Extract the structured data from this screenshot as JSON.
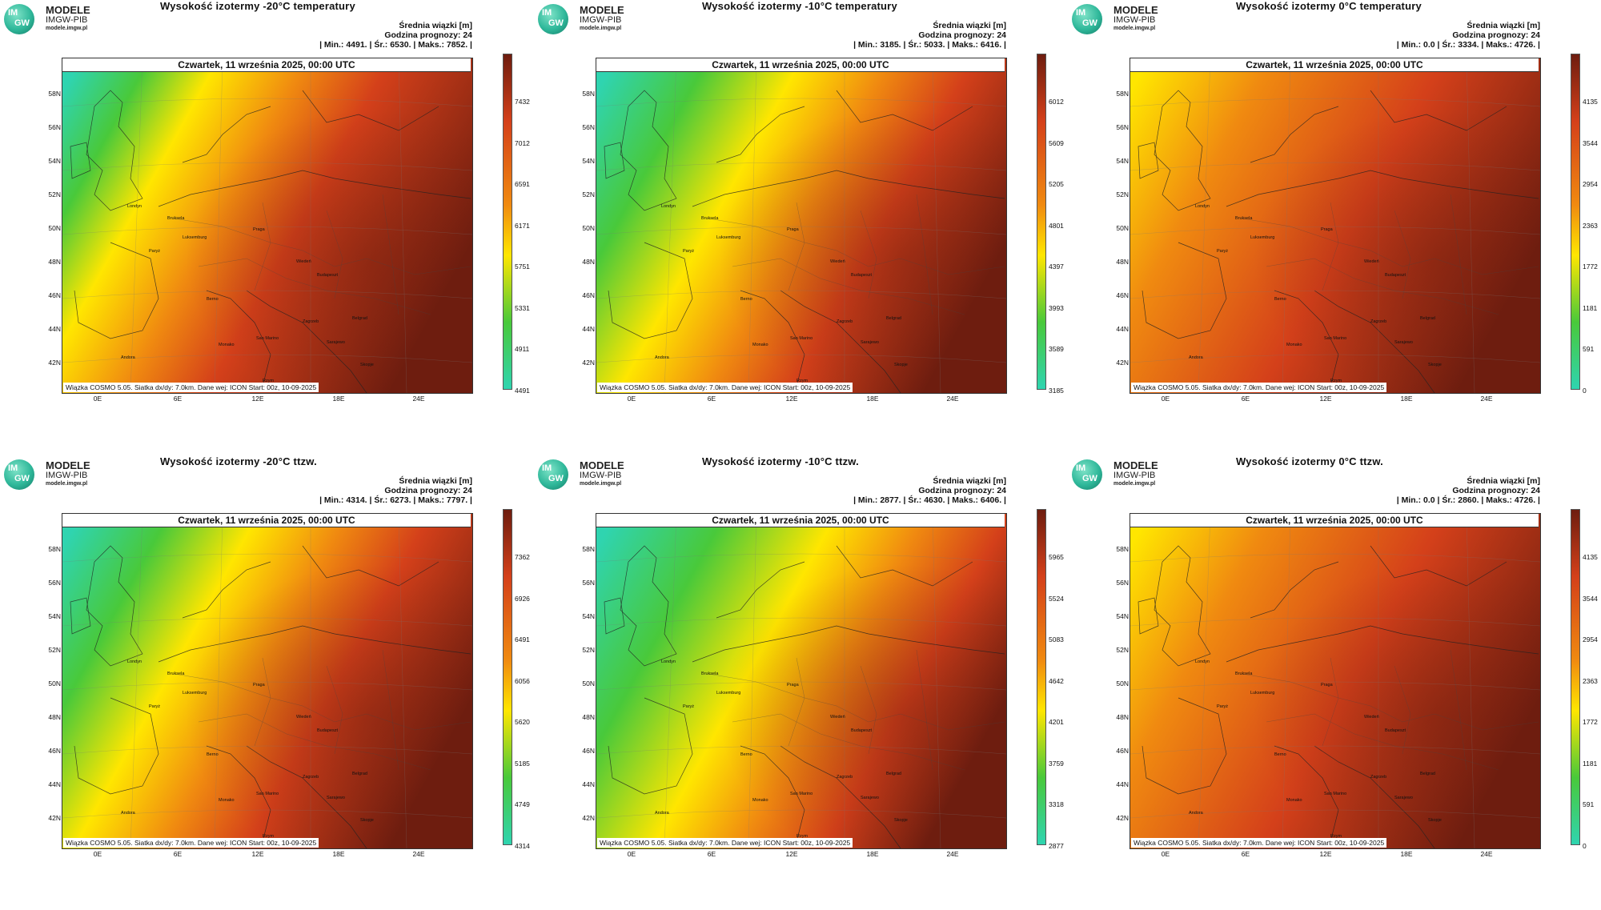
{
  "logo": {
    "mark_top": "IM",
    "mark_bottom": "GW",
    "line1": "MODELE",
    "line2": "IMGW-PIB",
    "line3": "modele.imgw.pl"
  },
  "stats_header": "Średnia wiązki [m]",
  "forecast_hour": "Godzina prognozy: 24",
  "date": "Czwartek, 11 września 2025, 00:00 UTC",
  "footer": "Wiązka COSMO 5.05. Siatka dx/dy: 7.0km. Dane wej: ICON Start: 00z, 10-09-2025",
  "lat_labels": [
    "58N",
    "56N",
    "54N",
    "52N",
    "50N",
    "48N",
    "46N",
    "44N",
    "42N"
  ],
  "lon_labels": [
    "0E",
    "6E",
    "12E",
    "18E",
    "24E"
  ],
  "cities": [
    "Londyn",
    "Bruksela",
    "Paryż",
    "Luksemburg",
    "Praga",
    "Wiedeń",
    "Budapeszt",
    "Berno",
    "Zagrzeb",
    "San Marino",
    "Monako",
    "Sarajewo",
    "Belgrad",
    "Andora",
    "Rzym",
    "Skopje"
  ],
  "panels": [
    {
      "title": "Wysokość izotermy -20°C temperatury",
      "stats": "| Min.:   4491. | Śr.:   6530. | Maks.:   7852. |",
      "colorbar_ticks": [
        "7432",
        "7012",
        "6591",
        "6171",
        "5751",
        "5331",
        "4911",
        "4491"
      ],
      "green_extent": 0.28
    },
    {
      "title": "Wysokość izotermy -10°C temperatury",
      "stats": "| Min.:   3185. | Śr.:   5033. | Maks.:   6416. |",
      "colorbar_ticks": [
        "6012",
        "5609",
        "5205",
        "4801",
        "4397",
        "3993",
        "3589",
        "3185"
      ],
      "green_extent": 0.38
    },
    {
      "title": "Wysokość izotermy 0°C temperatury",
      "stats": "| Min.:   0.0 | Śr.:   3334. | Maks.:   4726. |",
      "colorbar_ticks": [
        "4135",
        "3544",
        "2954",
        "2363",
        "1772",
        "1181",
        "591",
        "0"
      ],
      "green_extent": 0.0
    },
    {
      "title": "Wysokość izotermy -20°C ttzw.",
      "stats": "| Min.:   4314. | Śr.:   6273. | Maks.:   7797. |",
      "colorbar_ticks": [
        "7362",
        "6926",
        "6491",
        "6056",
        "5620",
        "5185",
        "4749",
        "4314"
      ],
      "green_extent": 0.36
    },
    {
      "title": "Wysokość izotermy -10°C ttzw.",
      "stats": "| Min.:   2877. | Śr.:   4630. | Maks.:   6406. |",
      "colorbar_ticks": [
        "5965",
        "5524",
        "5083",
        "4642",
        "4201",
        "3759",
        "3318",
        "2877"
      ],
      "green_extent": 0.45
    },
    {
      "title": "Wysokość izotermy 0°C ttzw.",
      "stats": "| Min.:   0.0 | Śr.:   2860. | Maks.:   4726. |",
      "colorbar_ticks": [
        "4135",
        "3544",
        "2954",
        "2363",
        "1772",
        "1181",
        "591",
        "0"
      ],
      "green_extent": 0.0
    }
  ],
  "colors": {
    "teal": "#2fd4b0",
    "green": "#49c93a",
    "yellow": "#ffe600",
    "orange": "#f08a10",
    "red": "#d4401a",
    "dark": "#6e1d0f"
  }
}
